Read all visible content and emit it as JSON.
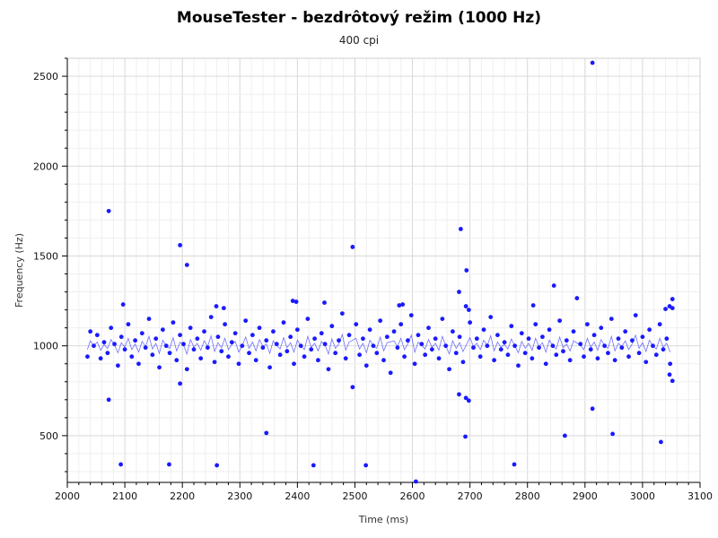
{
  "chart_data": {
    "type": "scatter",
    "title": "MouseTester - bezdrôtový režim (1000 Hz)",
    "subtitle": "400 cpi",
    "xlabel": "Time (ms)",
    "ylabel": "Frequency (Hz)",
    "xlim": [
      2000,
      3100
    ],
    "ylim": [
      240,
      2600
    ],
    "xticks": [
      2000,
      2100,
      2200,
      2300,
      2400,
      2500,
      2600,
      2700,
      2800,
      2900,
      3000,
      3100
    ],
    "yticks": [
      500,
      1000,
      1500,
      2000,
      2500
    ],
    "grid": true,
    "point_color": "#1a1aff",
    "line_color": "#3333ff",
    "series": [
      {
        "points": [
          [
            2072,
            1750
          ],
          [
            2196,
            1560
          ],
          [
            2496,
            1550
          ],
          [
            2684,
            1650
          ],
          [
            2694,
            1420
          ],
          [
            2913,
            2575
          ],
          [
            2097,
            1230
          ],
          [
            2208,
            1450
          ],
          [
            2259,
            1220
          ],
          [
            2272,
            1210
          ],
          [
            2392,
            1250
          ],
          [
            2398,
            1245
          ],
          [
            2447,
            1240
          ],
          [
            2577,
            1225
          ],
          [
            2583,
            1230
          ],
          [
            2681,
            1300
          ],
          [
            2693,
            1220
          ],
          [
            2698,
            1200
          ],
          [
            2810,
            1225
          ],
          [
            2846,
            1335
          ],
          [
            2886,
            1265
          ],
          [
            3040,
            1205
          ],
          [
            3047,
            1220
          ],
          [
            3052,
            1260
          ],
          [
            3052,
            1210
          ],
          [
            2072,
            700
          ],
          [
            2196,
            790
          ],
          [
            2496,
            770
          ],
          [
            2681,
            730
          ],
          [
            2693,
            710
          ],
          [
            2698,
            695
          ],
          [
            3047,
            840
          ],
          [
            3052,
            805
          ],
          [
            2346,
            515
          ],
          [
            2692,
            495
          ],
          [
            2865,
            500
          ],
          [
            2913,
            650
          ],
          [
            2948,
            510
          ],
          [
            3032,
            465
          ],
          [
            2093,
            340
          ],
          [
            2177,
            340
          ],
          [
            2260,
            335
          ],
          [
            2428,
            335
          ],
          [
            2519,
            335
          ],
          [
            2606,
            245
          ],
          [
            2777,
            340
          ],
          [
            2035,
            940
          ],
          [
            2040,
            1080
          ],
          [
            2046,
            1000
          ],
          [
            2052,
            1060
          ],
          [
            2058,
            930
          ],
          [
            2064,
            1020
          ],
          [
            2070,
            960
          ],
          [
            2076,
            1100
          ],
          [
            2082,
            1010
          ],
          [
            2088,
            890
          ],
          [
            2094,
            1050
          ],
          [
            2100,
            980
          ],
          [
            2106,
            1120
          ],
          [
            2112,
            940
          ],
          [
            2118,
            1030
          ],
          [
            2124,
            900
          ],
          [
            2130,
            1070
          ],
          [
            2136,
            990
          ],
          [
            2142,
            1150
          ],
          [
            2148,
            950
          ],
          [
            2154,
            1040
          ],
          [
            2160,
            880
          ],
          [
            2166,
            1090
          ],
          [
            2172,
            1000
          ],
          [
            2178,
            960
          ],
          [
            2184,
            1130
          ],
          [
            2190,
            920
          ],
          [
            2196,
            1060
          ],
          [
            2202,
            1010
          ],
          [
            2208,
            870
          ],
          [
            2214,
            1100
          ],
          [
            2220,
            980
          ],
          [
            2226,
            1040
          ],
          [
            2232,
            930
          ],
          [
            2238,
            1080
          ],
          [
            2244,
            990
          ],
          [
            2250,
            1160
          ],
          [
            2256,
            910
          ],
          [
            2262,
            1050
          ],
          [
            2268,
            970
          ],
          [
            2274,
            1120
          ],
          [
            2280,
            940
          ],
          [
            2286,
            1020
          ],
          [
            2292,
            1070
          ],
          [
            2298,
            900
          ],
          [
            2304,
            1000
          ],
          [
            2310,
            1140
          ],
          [
            2316,
            960
          ],
          [
            2322,
            1060
          ],
          [
            2328,
            920
          ],
          [
            2334,
            1100
          ],
          [
            2340,
            990
          ],
          [
            2346,
            1030
          ],
          [
            2352,
            880
          ],
          [
            2358,
            1080
          ],
          [
            2364,
            1010
          ],
          [
            2370,
            950
          ],
          [
            2376,
            1130
          ],
          [
            2382,
            970
          ],
          [
            2388,
            1050
          ],
          [
            2394,
            900
          ],
          [
            2400,
            1090
          ],
          [
            2406,
            1000
          ],
          [
            2412,
            940
          ],
          [
            2418,
            1150
          ],
          [
            2424,
            980
          ],
          [
            2430,
            1040
          ],
          [
            2436,
            920
          ],
          [
            2442,
            1070
          ],
          [
            2448,
            1010
          ],
          [
            2454,
            870
          ],
          [
            2460,
            1110
          ],
          [
            2466,
            960
          ],
          [
            2472,
            1030
          ],
          [
            2478,
            1180
          ],
          [
            2484,
            930
          ],
          [
            2490,
            1060
          ],
          [
            2502,
            1120
          ],
          [
            2508,
            950
          ],
          [
            2514,
            1040
          ],
          [
            2520,
            890
          ],
          [
            2526,
            1090
          ],
          [
            2532,
            1000
          ],
          [
            2538,
            960
          ],
          [
            2544,
            1140
          ],
          [
            2550,
            920
          ],
          [
            2556,
            1050
          ],
          [
            2562,
            850
          ],
          [
            2568,
            1080
          ],
          [
            2574,
            990
          ],
          [
            2580,
            1120
          ],
          [
            2586,
            940
          ],
          [
            2592,
            1030
          ],
          [
            2598,
            1170
          ],
          [
            2604,
            900
          ],
          [
            2610,
            1060
          ],
          [
            2616,
            1010
          ],
          [
            2622,
            950
          ],
          [
            2628,
            1100
          ],
          [
            2634,
            980
          ],
          [
            2640,
            1040
          ],
          [
            2646,
            930
          ],
          [
            2652,
            1150
          ],
          [
            2658,
            1000
          ],
          [
            2664,
            870
          ],
          [
            2670,
            1080
          ],
          [
            2676,
            960
          ],
          [
            2682,
            1050
          ],
          [
            2688,
            910
          ],
          [
            2700,
            1130
          ],
          [
            2706,
            990
          ],
          [
            2712,
            1040
          ],
          [
            2718,
            940
          ],
          [
            2724,
            1090
          ],
          [
            2730,
            1000
          ],
          [
            2736,
            1160
          ],
          [
            2742,
            920
          ],
          [
            2748,
            1060
          ],
          [
            2754,
            980
          ],
          [
            2760,
            1020
          ],
          [
            2766,
            950
          ],
          [
            2772,
            1110
          ],
          [
            2778,
            1000
          ],
          [
            2784,
            890
          ],
          [
            2790,
            1070
          ],
          [
            2796,
            960
          ],
          [
            2802,
            1040
          ],
          [
            2808,
            930
          ],
          [
            2814,
            1120
          ],
          [
            2820,
            990
          ],
          [
            2826,
            1050
          ],
          [
            2832,
            900
          ],
          [
            2838,
            1090
          ],
          [
            2844,
            1000
          ],
          [
            2850,
            950
          ],
          [
            2856,
            1140
          ],
          [
            2862,
            970
          ],
          [
            2868,
            1030
          ],
          [
            2874,
            920
          ],
          [
            2880,
            1080
          ],
          [
            2892,
            1010
          ],
          [
            2898,
            940
          ],
          [
            2904,
            1120
          ],
          [
            2910,
            980
          ],
          [
            2916,
            1060
          ],
          [
            2922,
            930
          ],
          [
            2928,
            1100
          ],
          [
            2934,
            1000
          ],
          [
            2940,
            960
          ],
          [
            2946,
            1150
          ],
          [
            2952,
            920
          ],
          [
            2958,
            1040
          ],
          [
            2964,
            990
          ],
          [
            2970,
            1080
          ],
          [
            2976,
            940
          ],
          [
            2982,
            1030
          ],
          [
            2988,
            1170
          ],
          [
            2994,
            960
          ],
          [
            3000,
            1050
          ],
          [
            3006,
            910
          ],
          [
            3012,
            1090
          ],
          [
            3018,
            1000
          ],
          [
            3024,
            950
          ],
          [
            3030,
            1120
          ],
          [
            3036,
            980
          ],
          [
            3042,
            1040
          ],
          [
            3048,
            900
          ]
        ]
      }
    ]
  }
}
